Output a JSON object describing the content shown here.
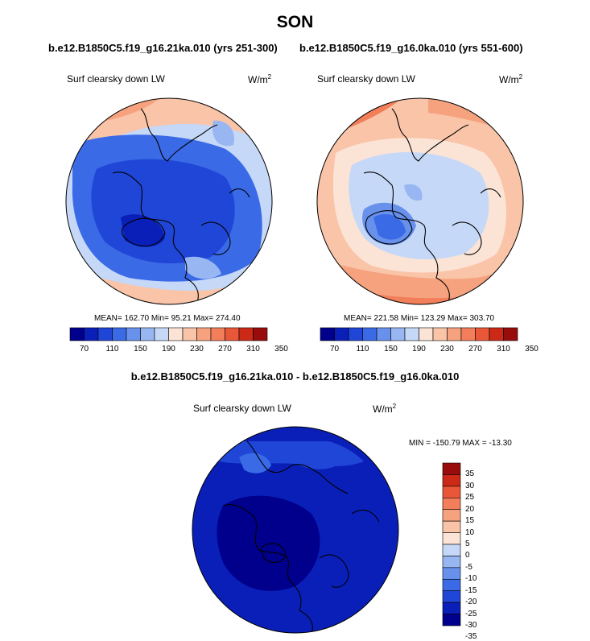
{
  "header": {
    "title": "SON",
    "left_case": "b.e12.B1850C5.f19_g16.21ka.010 (yrs 251-300)",
    "right_case": "b.e12.B1850C5.f19_g16.0ka.010 (yrs 551-600)",
    "diff_title": "b.e12.B1850C5.f19_g16.21ka.010 - b.e12.B1850C5.f19_g16.0ka.010"
  },
  "panels": {
    "left": {
      "variable": "Surf clearsky down LW",
      "units": "W/m",
      "units_sup": "2",
      "stats": "MEAN= 162.70  Min=  95.21  Max= 274.40"
    },
    "right": {
      "variable": "Surf clearsky down LW",
      "units": "W/m",
      "units_sup": "2",
      "stats": "MEAN= 221.58  Min= 123.29  Max= 303.70"
    },
    "diff": {
      "variable": "Surf clearsky down LW",
      "units": "W/m",
      "units_sup": "2",
      "stats": "MIN = -150.79 MAX = -13.30"
    }
  },
  "colors": {
    "abs_scale": [
      "#00008c",
      "#0a1fb8",
      "#1f46d6",
      "#3a6ae6",
      "#6891ec",
      "#98b6f2",
      "#c6d8f7",
      "#fbe4d6",
      "#f9c4a7",
      "#f6a27f",
      "#f27e5a",
      "#e95738",
      "#cc2a17",
      "#990c0c"
    ],
    "diff_scale": [
      "#00008c",
      "#0a1fb8",
      "#1f46d6",
      "#3a6ae6",
      "#6891ec",
      "#98b6f2",
      "#c6d8f7",
      "#fbe4d6",
      "#f9c4a7",
      "#f6a27f",
      "#f27e5a",
      "#e95738",
      "#cc2a17",
      "#990c0c"
    ]
  },
  "chart_data": [
    {
      "type": "heatmap",
      "title": "Surf clearsky down LW",
      "projection": "north polar stereographic",
      "units": "W/m2",
      "colorbar_ticks": [
        "70",
        "110",
        "150",
        "190",
        "230",
        "270",
        "310",
        "350"
      ],
      "mean": 162.7,
      "min": 95.21,
      "max": 274.4
    },
    {
      "type": "heatmap",
      "title": "Surf clearsky down LW",
      "projection": "north polar stereographic",
      "units": "W/m2",
      "colorbar_ticks": [
        "70",
        "110",
        "150",
        "190",
        "230",
        "270",
        "310",
        "350"
      ],
      "mean": 221.58,
      "min": 123.29,
      "max": 303.7
    },
    {
      "type": "heatmap",
      "title": "Surf clearsky down LW",
      "projection": "north polar stereographic",
      "units": "W/m2",
      "colorbar_ticks": [
        "35",
        "30",
        "25",
        "20",
        "15",
        "10",
        "5",
        "0",
        "-5",
        "-10",
        "-15",
        "-20",
        "-25",
        "-30",
        "-35"
      ],
      "min": -150.79,
      "max": -13.3
    }
  ]
}
